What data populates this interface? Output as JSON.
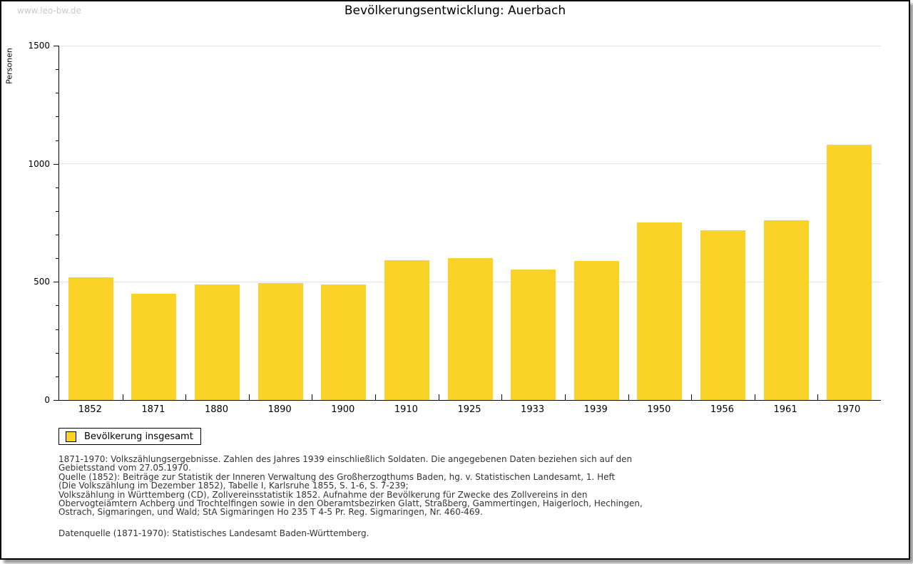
{
  "page": {
    "watermark": "www.leo-bw.de"
  },
  "chart_data": {
    "type": "bar",
    "title": "Bevölkerungsentwicklung: Auerbach",
    "xlabel": "",
    "ylabel": "Personen",
    "categories": [
      "1852",
      "1871",
      "1880",
      "1890",
      "1900",
      "1910",
      "1925",
      "1933",
      "1939",
      "1950",
      "1956",
      "1961",
      "1970"
    ],
    "values": [
      518,
      450,
      488,
      494,
      490,
      593,
      600,
      553,
      588,
      752,
      718,
      762,
      1080
    ],
    "series_name": "Bevölkerung insgesamt",
    "ylim": [
      0,
      1500
    ],
    "yticks": [
      0,
      500,
      1000,
      1500
    ],
    "y_minor_tick_step": 100,
    "grid": "horizontal gridlines at 500, 1000, 1500",
    "bar_color": "#fbd228",
    "legend_position": "bottom-left"
  },
  "legend": {
    "label": "Bevölkerung insgesamt",
    "swatch_color": "#fbd228"
  },
  "footnotes": {
    "lines": [
      "1871-1970: Volkszählungsergebnisse. Zahlen des Jahres 1939 einschließlich Soldaten. Die angegebenen Daten beziehen sich auf den",
      "Gebietsstand vom 27.05.1970.",
      "Quelle (1852): Beiträge zur Statistik der Inneren Verwaltung des Großherzogthums Baden, hg. v. Statistischen Landesamt, 1. Heft",
      "(Die Volkszählung im Dezember 1852), Tabelle I, Karlsruhe 1855, S. 1-6, S. 7-239;",
      "Volkszählung in Württemberg (CD), Zollvereinsstatistik 1852. Aufnahme der Bevölkerung für Zwecke des Zollvereins in den",
      "Obervogteiämtern Achberg und Trochtelfingen sowie in den Oberamtsbezirken Glatt, Straßberg, Gammertingen, Haigerloch, Hechingen,",
      "Ostrach, Sigmaringen, und Wald; StA Sigmaringen Ho 235 T 4-5 Pr. Reg. Sigmaringen, Nr. 460-469."
    ],
    "datasource": "Datenquelle (1871-1970): Statistisches Landesamt Baden-Württemberg."
  }
}
